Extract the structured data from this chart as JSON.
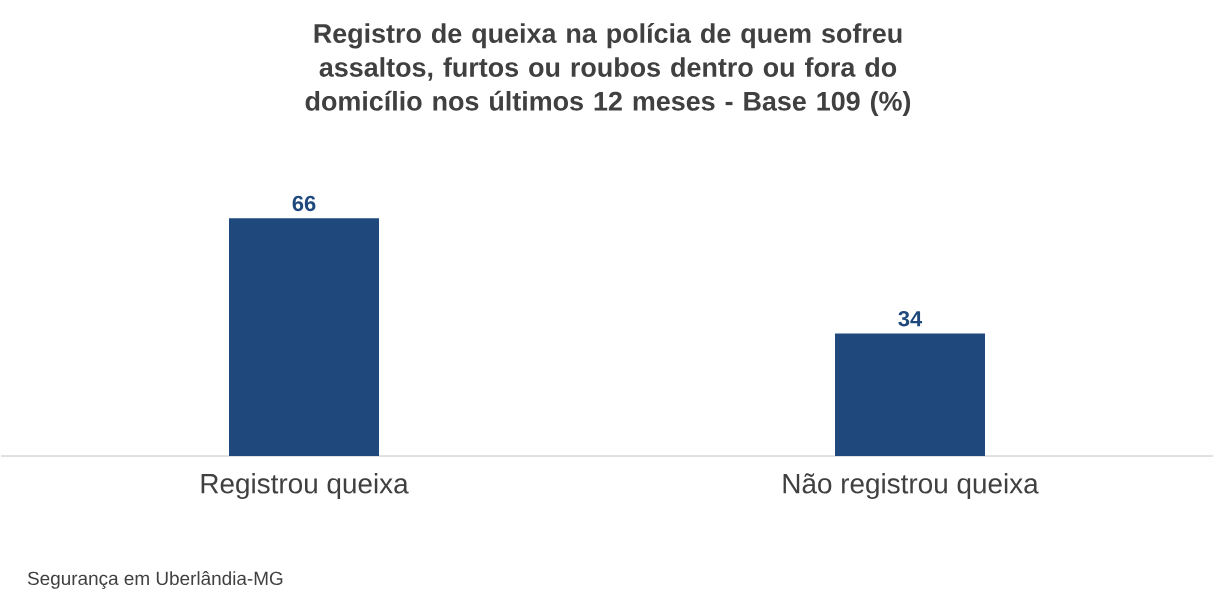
{
  "chart_data": {
    "type": "bar",
    "title": "Registro de queixa na polícia de quem sofreu assaltos, furtos ou roubos dentro ou fora do domicílio nos últimos 12 meses - Base 109 (%)",
    "categories": [
      "Registrou queixa",
      "Não registrou queixa"
    ],
    "values": [
      66,
      34
    ],
    "color": "#1f497d",
    "data_labels": true,
    "annotations": [
      "Segurança em Uberlândia-MG"
    ]
  }
}
